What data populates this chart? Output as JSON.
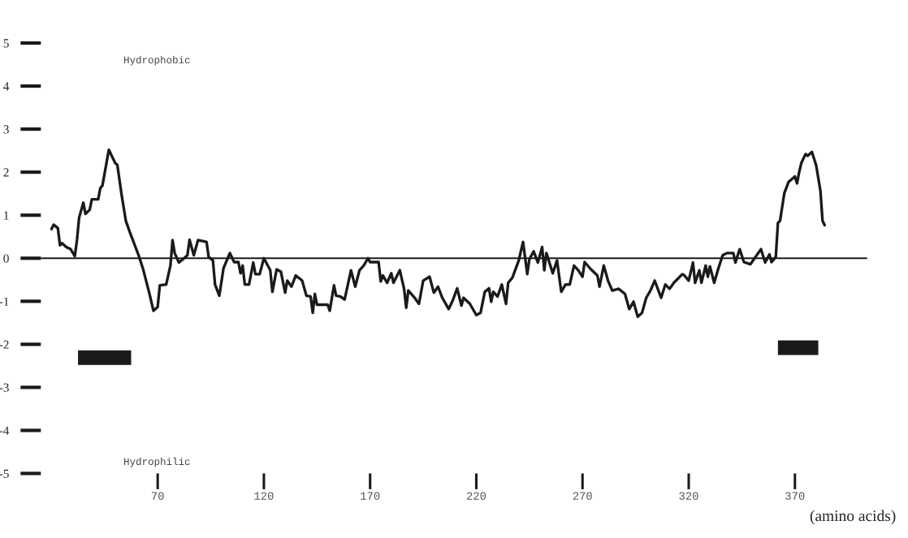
{
  "chart_data": {
    "type": "line",
    "xlabel": "(amino acids)",
    "xlim": [
      15,
      404
    ],
    "ylim": [
      -5,
      5
    ],
    "xticks": [
      70,
      120,
      170,
      220,
      270,
      320,
      370
    ],
    "yticks": [
      -5,
      -4,
      -3,
      -2,
      -1,
      0,
      1,
      2,
      3,
      4,
      5
    ],
    "grid": false,
    "legend": false,
    "marker": "none",
    "line_style": "solid",
    "annotations": [
      "Hydrophobic",
      "Hydrophilic"
    ],
    "ref_lines": [
      {
        "axis": "y",
        "value": 0,
        "color": "#1a1a1a"
      }
    ],
    "series": [
      {
        "color": "#1a1a1a",
        "x": [
          20,
          21,
          23,
          24,
          25,
          27,
          29,
          31,
          32,
          33,
          35,
          36,
          38,
          39,
          42,
          43,
          44,
          47,
          50,
          51,
          53,
          55,
          57,
          61,
          63,
          66,
          68,
          70,
          71,
          74,
          76,
          77,
          78,
          80,
          82,
          84,
          85,
          87,
          89,
          93,
          94,
          96,
          97,
          99,
          101,
          104,
          106,
          108,
          109,
          110,
          111,
          113,
          115,
          116,
          118,
          120,
          123,
          124,
          126,
          128,
          130,
          131,
          133,
          135,
          138,
          140,
          142,
          143,
          144,
          145,
          150,
          151,
          153,
          154,
          156,
          158,
          161,
          163,
          165,
          167,
          169,
          170,
          174,
          175,
          176,
          178,
          180,
          181,
          184,
          186,
          187,
          188,
          191,
          193,
          195,
          198,
          200,
          202,
          204,
          207,
          209,
          211,
          213,
          214,
          217,
          220,
          222,
          224,
          226,
          227,
          228,
          230,
          232,
          234,
          235,
          237,
          240,
          242,
          244,
          245,
          247,
          249,
          251,
          252,
          253,
          256,
          258,
          260,
          262,
          264,
          266,
          268,
          270,
          271,
          274,
          277,
          278,
          280,
          282,
          284,
          287,
          290,
          292,
          294,
          296,
          298,
          300,
          302,
          304,
          307,
          309,
          311,
          313,
          317,
          318,
          320,
          322,
          323,
          325,
          326,
          328,
          329,
          330,
          332,
          334,
          336,
          338,
          341,
          342,
          344,
          346,
          349,
          351,
          354,
          356,
          358,
          359,
          361,
          362,
          363,
          365,
          367,
          370,
          371,
          372,
          373,
          375,
          376,
          378,
          380,
          382,
          383,
          384
        ],
        "values": [
          0.68,
          0.78,
          0.7,
          0.3,
          0.35,
          0.26,
          0.21,
          0.05,
          0.42,
          0.94,
          1.29,
          1.03,
          1.13,
          1.37,
          1.37,
          1.63,
          1.69,
          2.52,
          2.21,
          2.17,
          1.48,
          0.87,
          0.59,
          0.07,
          -0.23,
          -0.8,
          -1.22,
          -1.13,
          -0.63,
          -0.61,
          -0.17,
          0.42,
          0.12,
          -0.1,
          -0.02,
          0.07,
          0.43,
          0.07,
          0.42,
          0.38,
          0.03,
          -0.05,
          -0.61,
          -0.87,
          -0.23,
          0.12,
          -0.09,
          -0.09,
          -0.35,
          -0.17,
          -0.61,
          -0.61,
          -0.1,
          -0.37,
          -0.37,
          0.0,
          -0.28,
          -0.78,
          -0.26,
          -0.31,
          -0.8,
          -0.52,
          -0.66,
          -0.4,
          -0.52,
          -0.87,
          -0.89,
          -1.27,
          -0.83,
          -1.08,
          -1.08,
          -1.22,
          -0.63,
          -0.87,
          -0.89,
          -0.96,
          -0.28,
          -0.66,
          -0.28,
          -0.17,
          0.0,
          -0.09,
          -0.09,
          -0.54,
          -0.4,
          -0.57,
          -0.35,
          -0.57,
          -0.28,
          -0.71,
          -1.15,
          -0.75,
          -0.92,
          -1.06,
          -0.52,
          -0.43,
          -0.8,
          -0.66,
          -0.92,
          -1.18,
          -0.97,
          -0.7,
          -1.1,
          -0.92,
          -1.06,
          -1.32,
          -1.27,
          -0.78,
          -0.7,
          -1.01,
          -0.78,
          -0.89,
          -0.61,
          -1.06,
          -0.57,
          -0.45,
          -0.05,
          0.38,
          -0.37,
          -0.02,
          0.16,
          -0.1,
          0.26,
          -0.28,
          0.12,
          -0.35,
          -0.05,
          -0.78,
          -0.61,
          -0.61,
          -0.17,
          -0.28,
          -0.43,
          -0.09,
          -0.26,
          -0.4,
          -0.66,
          -0.17,
          -0.52,
          -0.75,
          -0.71,
          -0.83,
          -1.18,
          -1.01,
          -1.36,
          -1.27,
          -0.92,
          -0.75,
          -0.52,
          -0.92,
          -0.61,
          -0.71,
          -0.57,
          -0.37,
          -0.4,
          -0.52,
          -0.1,
          -0.57,
          -0.28,
          -0.57,
          -0.17,
          -0.43,
          -0.19,
          -0.57,
          -0.23,
          0.07,
          0.12,
          0.12,
          -0.1,
          0.21,
          -0.09,
          -0.14,
          0.0,
          0.21,
          -0.1,
          0.09,
          -0.09,
          0.03,
          0.82,
          0.87,
          1.51,
          1.77,
          1.9,
          1.74,
          2.0,
          2.21,
          2.42,
          2.38,
          2.47,
          2.16,
          1.57,
          0.87,
          0.77
        ]
      },
      {
        "type": "line",
        "color": "#1a1a1a",
        "x": [
          32.5,
          57.5
        ],
        "values": [
          -2.31,
          -2.31
        ]
      },
      {
        "type": "line",
        "color": "#1a1a1a",
        "x": [
          362,
          381
        ],
        "values": [
          -2.08,
          -2.08
        ]
      }
    ]
  }
}
